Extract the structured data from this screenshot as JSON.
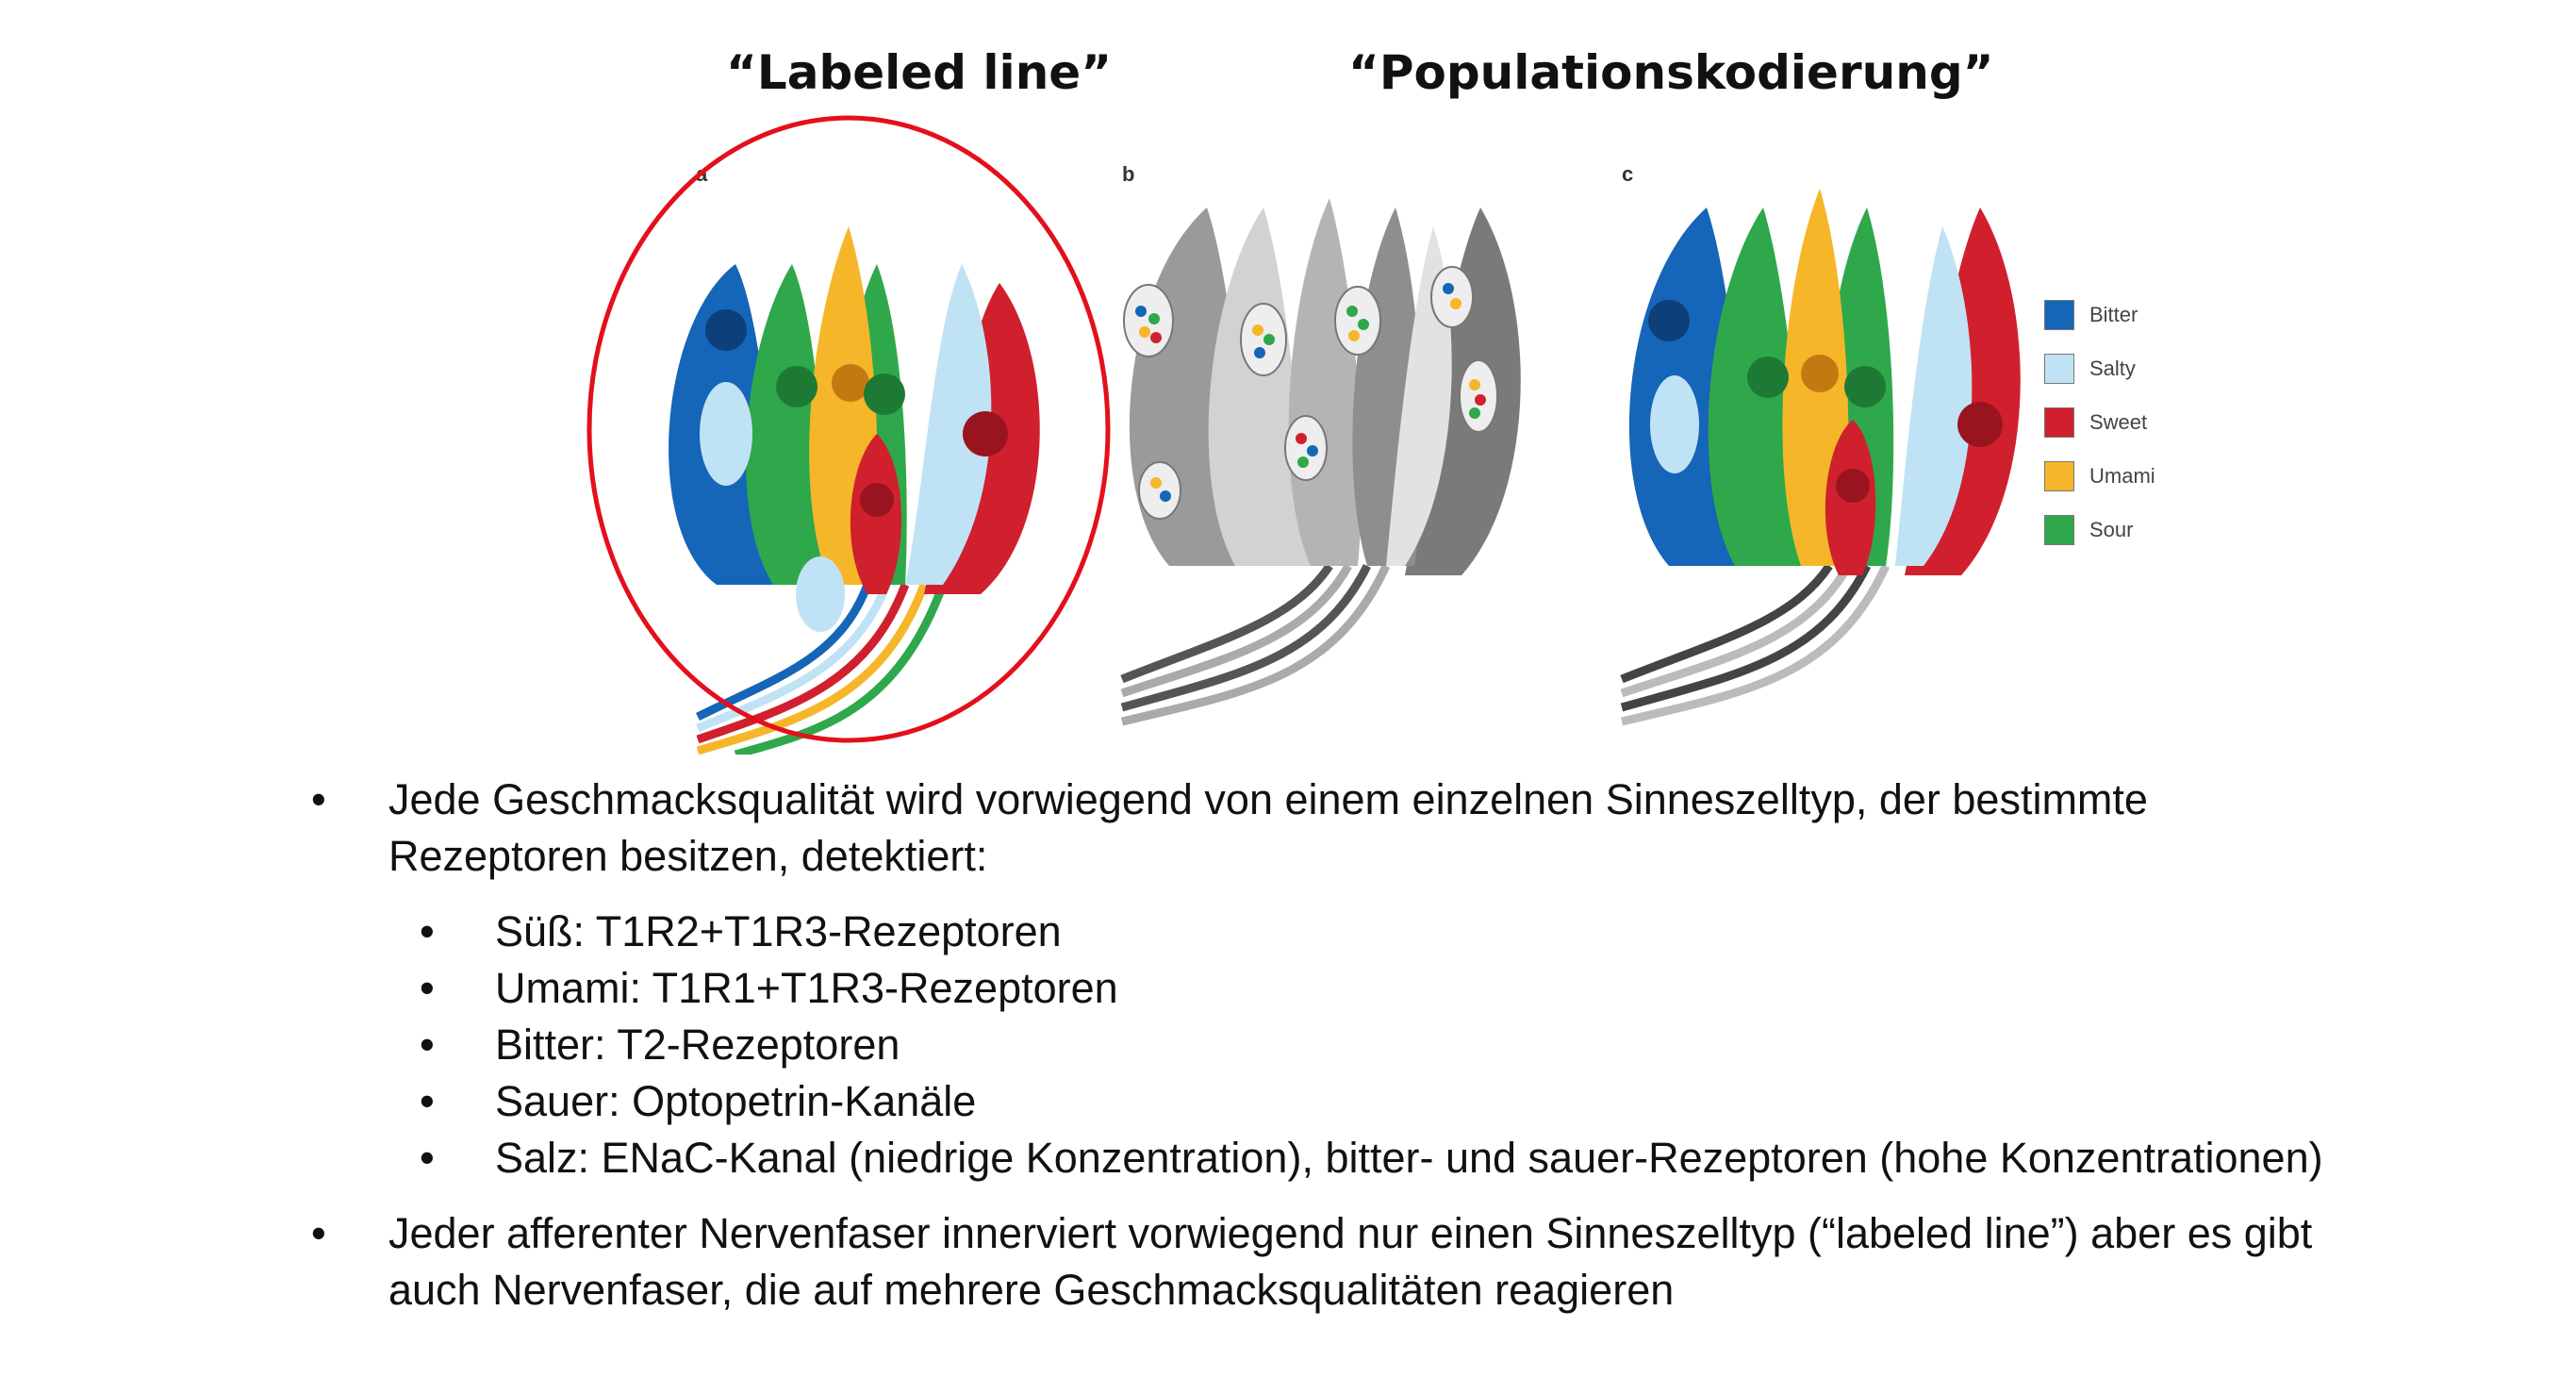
{
  "headings": {
    "labeled_line": "“Labeled line”",
    "population": "“Populationskodierung”"
  },
  "panels": [
    {
      "label": "a"
    },
    {
      "label": "b"
    },
    {
      "label": "c"
    }
  ],
  "legend": [
    {
      "label": "Bitter",
      "color": "#1565b8"
    },
    {
      "label": "Salty",
      "color": "#bfe3f5"
    },
    {
      "label": "Sweet",
      "color": "#d0202e"
    },
    {
      "label": "Umami",
      "color": "#f5b62a"
    },
    {
      "label": "Sour",
      "color": "#2ea84a"
    }
  ],
  "bullets": {
    "b1": "Jede Geschmacksqualität wird vorwiegend von einem einzelnen Sinneszelltyp, der bestimmte Rezeptoren besitzen, detektiert:",
    "sub": [
      "Süß: T1R2+T1R3-Rezeptoren",
      "Umami: T1R1+T1R3-Rezeptoren",
      "Bitter: T2-Rezeptoren",
      "Sauer: Optopetrin-Kanäle",
      "Salz: ENaC-Kanal (niedrige Konzentration), bitter- und sauer-Rezeptoren (hohe Konzentrationen)"
    ],
    "b2": "Jeder afferenter Nervenfaser innerviert vorwiegend nur einen Sinneszelltyp (“labeled line”) aber es gibt auch Nervenfaser, die auf mehrere Geschmacksqualitäten reagieren",
    "marker": "•"
  },
  "colors": {
    "ring": "#e3101c"
  }
}
